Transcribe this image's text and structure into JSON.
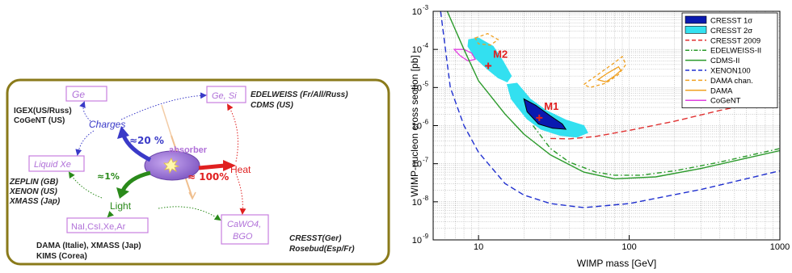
{
  "diagram": {
    "boxes": {
      "ge": "Ge",
      "ge_si": "Ge, Si",
      "liquid_xe": "Liquid Xe",
      "nai": "NaI,CsI,Xe,Ar",
      "cawo4_line1": "CaWO4,",
      "cawo4_line2": "BGO"
    },
    "center": {
      "absorber": "absorber",
      "charges": "Charges",
      "charges_pct": "≈20 %",
      "heat": "Heat",
      "heat_pct": "≈ 100%",
      "light": "Light",
      "light_pct": "≈1%"
    },
    "experiments": {
      "igex_1": "IGEX(US/Russ)",
      "igex_2": "CoGeNT (US)",
      "edelweiss_1": "EDELWEISS (Fr/All/Russ)",
      "edelweiss_2": "CDMS (US)",
      "zeplin_1": "ZEPLIN (GB)",
      "zeplin_2": "XENON (US)",
      "zeplin_3": "XMASS (Jap)",
      "dama_1": "DAMA (Italie), XMASS (Jap)",
      "dama_2": "KIMS (Corea)",
      "cresst_1": "CRESST(Ger)",
      "cresst_2": "Rosebud(Esp/Fr)"
    },
    "colors": {
      "frame": "#8a7a1a",
      "box": "#c77ee0",
      "blue_arrow": "#3a3ac8",
      "red_arrow": "#e02020",
      "green_arrow": "#2a8a1a"
    }
  },
  "chart_data": {
    "type": "line",
    "xlabel": "WIMP mass [GeV]",
    "ylabel": "WIMP-nucleon cross section [pb]",
    "xscale": "log",
    "yscale": "log",
    "xlim": [
      5,
      1000
    ],
    "ylim_exp": [
      -9,
      -3
    ],
    "x_ticks": [
      "10",
      "100",
      "1000"
    ],
    "y_ticks": [
      "10",
      "10",
      "10",
      "10",
      "10",
      "10",
      "10"
    ],
    "y_tick_exponents": [
      "-9",
      "-8",
      "-7",
      "-6",
      "-5",
      "-4",
      "-3"
    ],
    "legend_position": "top-right",
    "legend": [
      {
        "label": "CRESST 1σ",
        "color": "#0a1ab0",
        "style": "filled-dark"
      },
      {
        "label": "CRESST 2σ",
        "color": "#33e0f0",
        "style": "filled-light"
      },
      {
        "label": "CRESST 2009",
        "color": "#e03030",
        "style": "dashed"
      },
      {
        "label": "EDELWEISS-II",
        "color": "#2a9a2a",
        "style": "dashdot"
      },
      {
        "label": "CDMS-II",
        "color": "#2a9a2a",
        "style": "solid"
      },
      {
        "label": "XENON100",
        "color": "#2030d0",
        "style": "dashed"
      },
      {
        "label": "DAMA chan.",
        "color": "#f0a020",
        "style": "dashed"
      },
      {
        "label": "DAMA",
        "color": "#f0a020",
        "style": "solid"
      },
      {
        "label": "CoGeNT",
        "color": "#e040e0",
        "style": "solid"
      }
    ],
    "annotations": [
      {
        "label": "M1",
        "x": 25.3,
        "y": 1.6e-06
      },
      {
        "label": "M2",
        "x": 11.6,
        "y": 3.7e-05
      }
    ],
    "series": [
      {
        "name": "CRESST 2009",
        "x": [
          30,
          40,
          60,
          100,
          200,
          400,
          700
        ],
        "y": [
          4.6e-07,
          4.5e-07,
          5.2e-07,
          7.5e-07,
          1.3e-06,
          2.5e-06,
          4e-06
        ]
      },
      {
        "name": "EDELWEISS-II",
        "x": [
          23,
          30,
          40,
          60,
          80,
          120,
          200,
          400,
          1000
        ],
        "y": [
          1e-06,
          2.5e-07,
          1.1e-07,
          6e-08,
          5e-08,
          5e-08,
          6.5e-08,
          1.1e-07,
          2.5e-07
        ]
      },
      {
        "name": "CDMS-II",
        "x": [
          6.2,
          8,
          10,
          15,
          20,
          30,
          50,
          80,
          150,
          300,
          600,
          1000
        ],
        "y": [
          0.001,
          0.0001,
          1.5e-05,
          2e-06,
          6e-07,
          1.7e-07,
          6e-08,
          4e-08,
          4.5e-08,
          7.5e-08,
          1.4e-07,
          2.2e-07
        ]
      },
      {
        "name": "XENON100",
        "x": [
          5.6,
          6.5,
          8,
          10,
          15,
          20,
          30,
          50,
          100,
          300,
          1000
        ],
        "y": [
          0.001,
          1e-05,
          1e-06,
          2e-07,
          3e-08,
          1.5e-08,
          9e-09,
          7e-09,
          9e-09,
          2.1e-08,
          6.5e-08
        ]
      }
    ],
    "regions": [
      {
        "name": "CRESST 2σ",
        "points": [
          [
            15.5,
            1.2e-05
          ],
          [
            18,
            1.3e-05
          ],
          [
            22,
            5e-06
          ],
          [
            28,
            2.5e-06
          ],
          [
            38,
            1.4e-06
          ],
          [
            50,
            1e-06
          ],
          [
            53,
            6.5e-07
          ],
          [
            45,
            5e-07
          ],
          [
            35,
            5.5e-07
          ],
          [
            26,
            8e-07
          ],
          [
            21,
            1.5e-06
          ],
          [
            18,
            3.2e-06
          ],
          [
            16.5,
            5e-06
          ]
        ]
      },
      {
        "name": "CRESST 2σ",
        "points": [
          [
            8.6,
            0.00018
          ],
          [
            10,
            0.0002
          ],
          [
            12.5,
            0.00012
          ],
          [
            14.5,
            5e-05
          ],
          [
            16.5,
            2e-05
          ],
          [
            15.5,
            1.4e-05
          ],
          [
            13.5,
            1.8e-05
          ],
          [
            11.5,
            3e-05
          ],
          [
            9.5,
            6e-05
          ],
          [
            8.5,
            0.00012
          ]
        ]
      },
      {
        "name": "CRESST 1σ",
        "points": [
          [
            20,
            5e-06
          ],
          [
            24,
            3.4e-06
          ],
          [
            30,
            1.8e-06
          ],
          [
            36,
            1.1e-06
          ],
          [
            38,
            8e-07
          ],
          [
            31,
            8.5e-07
          ],
          [
            25,
            1.1e-06
          ],
          [
            21,
            2.3e-06
          ]
        ]
      },
      {
        "name": "DAMA chan.",
        "points": [
          [
            9.5,
            0.0002
          ],
          [
            11.5,
            0.00026
          ],
          [
            13.5,
            0.00018
          ],
          [
            12,
            0.00013
          ],
          [
            10,
            0.00014
          ]
        ]
      },
      {
        "name": "DAMA chan.",
        "points": [
          [
            50,
            1.2e-05
          ],
          [
            60,
            2e-05
          ],
          [
            80,
            4.5e-05
          ],
          [
            90,
            6.5e-05
          ],
          [
            95,
            4e-05
          ],
          [
            85,
            2.2e-05
          ],
          [
            70,
            1.3e-05
          ],
          [
            55,
            1e-05
          ]
        ]
      },
      {
        "name": "DAMA",
        "points": [
          [
            62,
            1.6e-05
          ],
          [
            72,
            2.4e-05
          ],
          [
            85,
            3.5e-05
          ],
          [
            88,
            2.8e-05
          ],
          [
            80,
            2e-05
          ],
          [
            70,
            1.4e-05
          ]
        ]
      },
      {
        "name": "CoGeNT",
        "points": [
          [
            6.9,
            0.0001
          ],
          [
            7.5,
            7e-05
          ],
          [
            8.5,
            5e-05
          ],
          [
            9.5,
            5.5e-05
          ],
          [
            9,
            8e-05
          ],
          [
            8,
            0.0001
          ]
        ]
      }
    ]
  }
}
